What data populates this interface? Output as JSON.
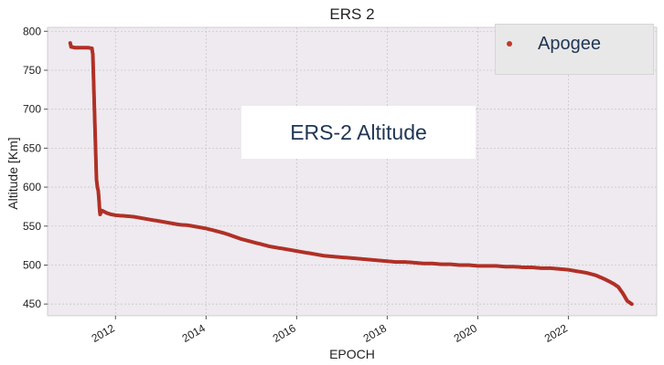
{
  "chart_data": {
    "type": "scatter",
    "title": "ERS 2",
    "xlabel": "EPOCH",
    "ylabel": "Altitude [Km]",
    "xlim": [
      2010.5,
      2023.95
    ],
    "ylim": [
      435,
      805
    ],
    "x_ticks": [
      2012,
      2014,
      2016,
      2018,
      2020,
      2022
    ],
    "y_ticks": [
      450,
      500,
      550,
      600,
      650,
      700,
      750,
      800
    ],
    "grid": true,
    "legend": {
      "position": "top-right",
      "entries": [
        "Apogee"
      ]
    },
    "annotation": "ERS-2 Altitude",
    "series": [
      {
        "name": "Apogee",
        "color": "#b03026",
        "points": [
          [
            2011.0,
            785
          ],
          [
            2011.02,
            780
          ],
          [
            2011.1,
            779
          ],
          [
            2011.2,
            779
          ],
          [
            2011.3,
            779
          ],
          [
            2011.4,
            779
          ],
          [
            2011.48,
            778
          ],
          [
            2011.5,
            770
          ],
          [
            2011.51,
            750
          ],
          [
            2011.52,
            730
          ],
          [
            2011.53,
            710
          ],
          [
            2011.54,
            690
          ],
          [
            2011.55,
            670
          ],
          [
            2011.56,
            650
          ],
          [
            2011.57,
            630
          ],
          [
            2011.58,
            610
          ],
          [
            2011.6,
            600
          ],
          [
            2011.62,
            595
          ],
          [
            2011.64,
            580
          ],
          [
            2011.65,
            570
          ],
          [
            2011.66,
            565
          ],
          [
            2011.7,
            570
          ],
          [
            2011.8,
            567
          ],
          [
            2011.9,
            565
          ],
          [
            2012.0,
            564
          ],
          [
            2012.2,
            563
          ],
          [
            2012.4,
            562
          ],
          [
            2012.6,
            560
          ],
          [
            2012.8,
            558
          ],
          [
            2013.0,
            556
          ],
          [
            2013.2,
            554
          ],
          [
            2013.4,
            552
          ],
          [
            2013.6,
            551
          ],
          [
            2013.8,
            549
          ],
          [
            2014.0,
            547
          ],
          [
            2014.2,
            544
          ],
          [
            2014.4,
            541
          ],
          [
            2014.6,
            537
          ],
          [
            2014.8,
            533
          ],
          [
            2015.0,
            530
          ],
          [
            2015.2,
            527
          ],
          [
            2015.4,
            524
          ],
          [
            2015.6,
            522
          ],
          [
            2015.8,
            520
          ],
          [
            2016.0,
            518
          ],
          [
            2016.2,
            516
          ],
          [
            2016.4,
            514
          ],
          [
            2016.6,
            512
          ],
          [
            2016.8,
            511
          ],
          [
            2017.0,
            510
          ],
          [
            2017.2,
            509
          ],
          [
            2017.4,
            508
          ],
          [
            2017.6,
            507
          ],
          [
            2017.8,
            506
          ],
          [
            2018.0,
            505
          ],
          [
            2018.2,
            504
          ],
          [
            2018.4,
            504
          ],
          [
            2018.6,
            503
          ],
          [
            2018.8,
            502
          ],
          [
            2019.0,
            502
          ],
          [
            2019.2,
            501
          ],
          [
            2019.4,
            501
          ],
          [
            2019.6,
            500
          ],
          [
            2019.8,
            500
          ],
          [
            2020.0,
            499
          ],
          [
            2020.2,
            499
          ],
          [
            2020.4,
            499
          ],
          [
            2020.6,
            498
          ],
          [
            2020.8,
            498
          ],
          [
            2021.0,
            497
          ],
          [
            2021.2,
            497
          ],
          [
            2021.4,
            496
          ],
          [
            2021.6,
            496
          ],
          [
            2021.8,
            495
          ],
          [
            2022.0,
            494
          ],
          [
            2022.2,
            492
          ],
          [
            2022.4,
            490
          ],
          [
            2022.6,
            487
          ],
          [
            2022.8,
            482
          ],
          [
            2023.0,
            476
          ],
          [
            2023.1,
            472
          ],
          [
            2023.2,
            464
          ],
          [
            2023.3,
            454
          ],
          [
            2023.4,
            450
          ]
        ]
      }
    ]
  }
}
